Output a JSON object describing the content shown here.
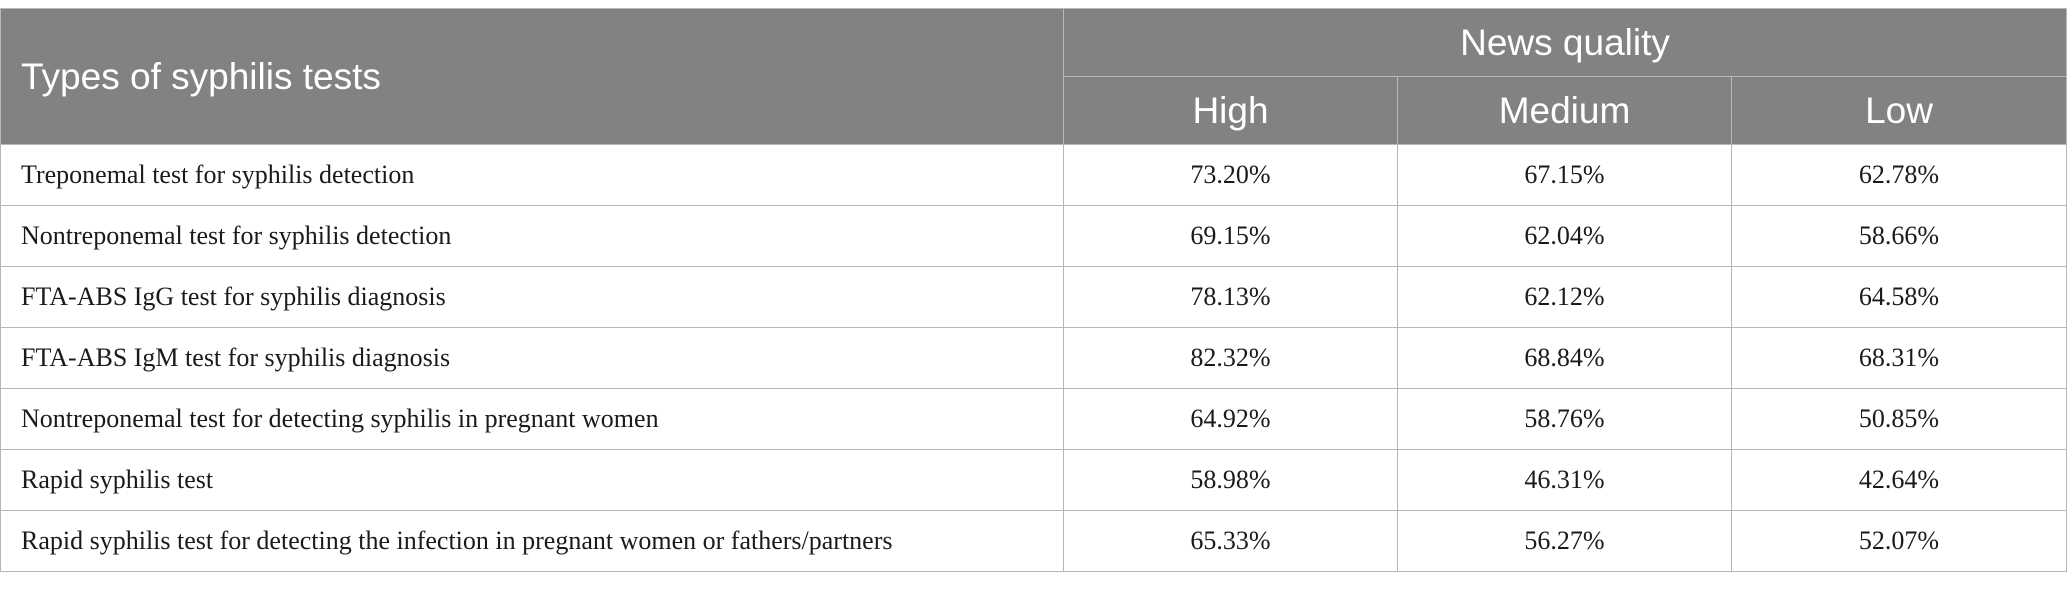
{
  "header": {
    "row_label": "Types of syphilis tests",
    "group_label": "News quality",
    "columns": [
      "High",
      "Medium",
      "Low"
    ]
  },
  "rows": [
    {
      "label": "Treponemal test for syphilis detection",
      "values": [
        "73.20%",
        "67.15%",
        "62.78%"
      ]
    },
    {
      "label": "Nontreponemal test for syphilis detection",
      "values": [
        "69.15%",
        "62.04%",
        "58.66%"
      ]
    },
    {
      "label": "FTA-ABS IgG test for syphilis diagnosis",
      "values": [
        "78.13%",
        "62.12%",
        "64.58%"
      ]
    },
    {
      "label": "FTA-ABS IgM test for syphilis diagnosis",
      "values": [
        "82.32%",
        "68.84%",
        "68.31%"
      ]
    },
    {
      "label": "Nontreponemal test for detecting syphilis in pregnant women",
      "values": [
        "64.92%",
        "58.76%",
        "50.85%"
      ]
    },
    {
      "label": "Rapid syphilis test",
      "values": [
        "58.98%",
        "46.31%",
        "42.64%"
      ]
    },
    {
      "label": "Rapid syphilis test for detecting the infection in pregnant women or fathers/partners",
      "values": [
        "65.33%",
        "56.27%",
        "52.07%"
      ]
    }
  ]
}
